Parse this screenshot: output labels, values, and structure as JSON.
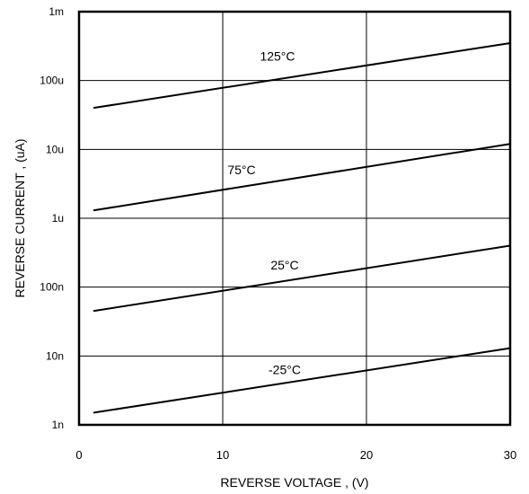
{
  "chart_data": {
    "type": "line",
    "xlabel": "REVERSE VOLTAGE , (V)",
    "ylabel": "REVERSE CURRENT , (uA)",
    "x_ticks": [
      "0",
      "10",
      "20",
      "30"
    ],
    "y_ticks": [
      "1n",
      "10n",
      "100n",
      "1u",
      "10u",
      "100u",
      "1m"
    ],
    "xlim": [
      0,
      30
    ],
    "ylim": [
      1e-09,
      0.001
    ],
    "y_scale": "log",
    "grid": true,
    "series": [
      {
        "name": "125°C",
        "x": [
          1,
          30
        ],
        "y": [
          4e-05,
          0.00035
        ]
      },
      {
        "name": "75°C",
        "x": [
          1,
          30
        ],
        "y": [
          1.3e-06,
          1.2e-05
        ]
      },
      {
        "name": "25°C",
        "x": [
          1,
          30
        ],
        "y": [
          4.5e-08,
          4e-07
        ]
      },
      {
        "name": "-25°C",
        "x": [
          1,
          30
        ],
        "y": [
          1.5e-09,
          1.3e-08
        ]
      }
    ]
  }
}
